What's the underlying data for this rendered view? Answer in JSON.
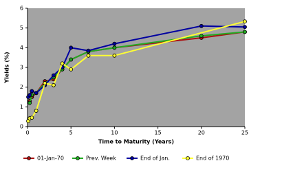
{
  "chart_data": {
    "type": "line",
    "xlabel": "Time to Maturity (Years)",
    "ylabel": "Yields (%)",
    "xlim": [
      0,
      25
    ],
    "xticks": [
      0,
      5,
      10,
      15,
      20,
      25
    ],
    "ylim": [
      0,
      6
    ],
    "yticks": [
      0,
      1,
      2,
      3,
      4,
      5,
      6
    ],
    "series": [
      {
        "name": "01-Jan-70",
        "color": "#aa1111",
        "x": [
          0.25,
          0.5,
          1,
          2,
          3,
          4,
          5,
          7,
          10,
          20,
          25
        ],
        "values": [
          1.3,
          1.5,
          1.7,
          2.3,
          2.4,
          2.9,
          3.4,
          3.8,
          4.0,
          4.5,
          4.8
        ]
      },
      {
        "name": "Prev. Week",
        "color": "#22aa22",
        "x": [
          0.25,
          0.5,
          1,
          2,
          3,
          4,
          5,
          7,
          10,
          20,
          25
        ],
        "values": [
          1.2,
          1.6,
          1.7,
          2.2,
          2.5,
          2.9,
          3.4,
          3.8,
          4.0,
          4.6,
          4.8
        ]
      },
      {
        "name": "End of Jan.",
        "color": "#0000a0",
        "x": [
          0.083,
          0.25,
          0.5,
          1,
          2,
          3,
          4,
          5,
          7,
          10,
          20,
          25
        ],
        "values": [
          1.5,
          1.6,
          1.8,
          1.7,
          2.1,
          2.6,
          3.0,
          4.0,
          3.85,
          4.2,
          5.1,
          5.05
        ]
      },
      {
        "name": "End of 1970",
        "color": "#ffff33",
        "x": [
          0.083,
          0.25,
          0.5,
          1,
          2,
          3,
          4,
          5,
          7,
          10,
          25
        ],
        "values": [
          0.28,
          0.42,
          0.45,
          0.8,
          2.2,
          2.1,
          3.2,
          2.9,
          3.6,
          3.6,
          5.33
        ]
      }
    ]
  }
}
